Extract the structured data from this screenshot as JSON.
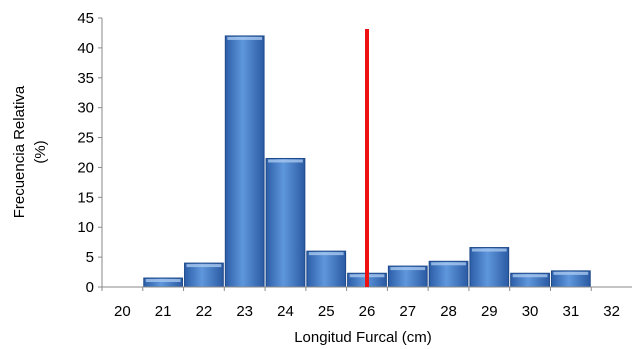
{
  "chart_data": {
    "type": "bar",
    "title": "",
    "xlabel": "Longitud Furcal (cm)",
    "ylabel": [
      "Frecuencia Relativa",
      "(%)"
    ],
    "categories": [
      "20",
      "21",
      "22",
      "23",
      "24",
      "25",
      "26",
      "27",
      "28",
      "29",
      "30",
      "31",
      "32"
    ],
    "values": [
      0,
      1.5,
      4,
      42,
      21.5,
      6,
      2.3,
      3.5,
      4.3,
      6.6,
      2.3,
      2.7,
      0
    ],
    "ylim": [
      0,
      45
    ],
    "yticks": [
      "0",
      "5",
      "10",
      "15",
      "20",
      "25",
      "30",
      "35",
      "40",
      "45"
    ],
    "reference_line": {
      "x": 26,
      "color": "#ee1111"
    },
    "bar_color": "#3f78c4",
    "grid": false,
    "legend": "none"
  }
}
